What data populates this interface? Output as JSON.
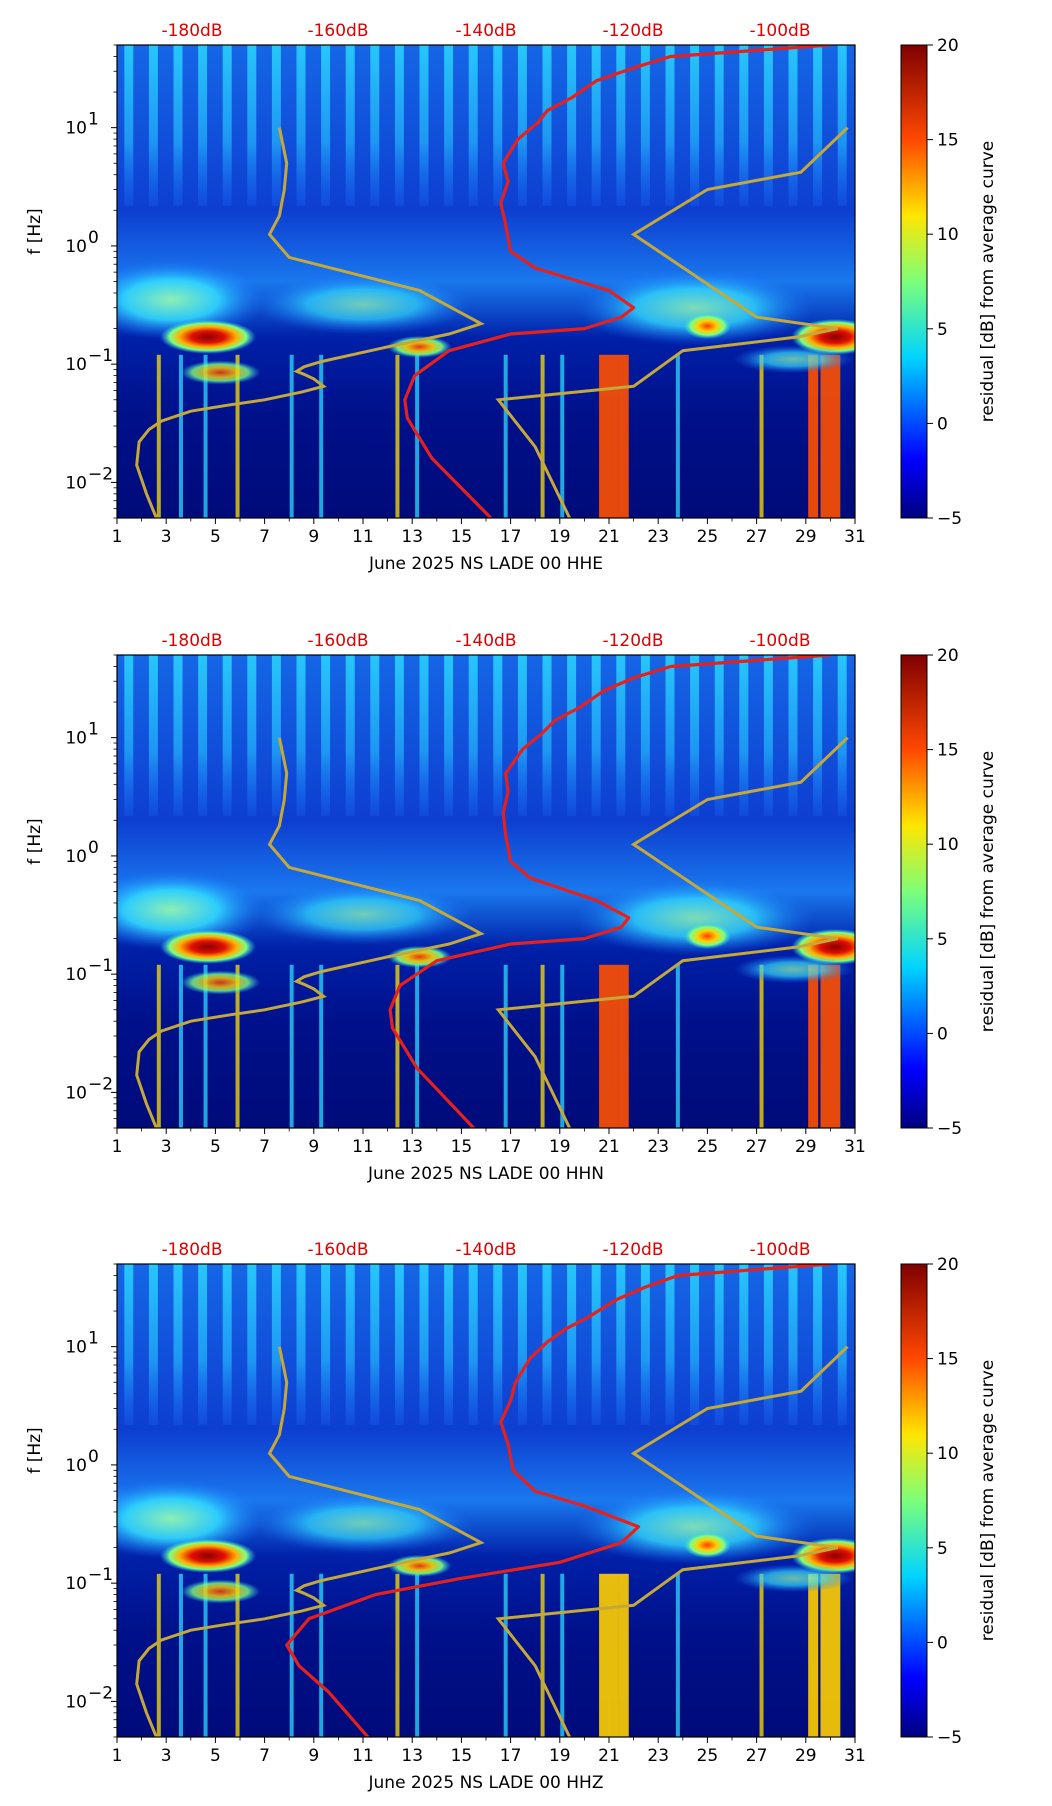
{
  "chart_data": [
    {
      "type": "heatmap",
      "xlabel": "June 2025 NS LADE 00 HHE",
      "ylabel": "f [Hz]",
      "colorbar_label": "residual [dB] from average curve",
      "x_ticks": [
        "1",
        "3",
        "5",
        "7",
        "9",
        "11",
        "13",
        "15",
        "17",
        "19",
        "21",
        "23",
        "25",
        "27",
        "29",
        "31"
      ],
      "xlim": [
        1,
        31
      ],
      "ylim_hz": [
        0.005,
        50
      ],
      "y_ticks": [
        {
          "exp": "1",
          "value": 10
        },
        {
          "exp": "0",
          "value": 1
        },
        {
          "exp": "−1",
          "value": 0.1
        },
        {
          "exp": "−2",
          "value": 0.01
        }
      ],
      "clim": [
        -5,
        20
      ],
      "colorbar_ticks": [
        "20",
        "15",
        "10",
        "5",
        "0",
        "−5"
      ],
      "top_scale_labels": [
        "-180dB",
        "-160dB",
        "-140dB",
        "-120dB",
        "-100dB"
      ],
      "red_curve": [
        [
          16.2,
          0.005
        ],
        [
          13.8,
          0.016
        ],
        [
          12.8,
          0.035
        ],
        [
          12.7,
          0.05
        ],
        [
          13.1,
          0.08
        ],
        [
          14.5,
          0.13
        ],
        [
          17,
          0.18
        ],
        [
          20,
          0.2
        ],
        [
          21.5,
          0.25
        ],
        [
          22,
          0.3
        ],
        [
          21,
          0.42
        ],
        [
          18,
          0.65
        ],
        [
          17,
          0.9
        ],
        [
          16.8,
          1.5
        ],
        [
          16.6,
          2.3
        ],
        [
          16.9,
          3.5
        ],
        [
          16.7,
          5
        ],
        [
          17.3,
          8
        ],
        [
          18.1,
          11
        ],
        [
          18.5,
          14
        ],
        [
          19.5,
          18
        ],
        [
          20.5,
          25
        ],
        [
          22,
          32
        ],
        [
          23.5,
          40
        ],
        [
          30,
          50
        ]
      ]
    },
    {
      "type": "heatmap",
      "xlabel": "June 2025 NS LADE 00 HHN",
      "ylabel": "f [Hz]",
      "colorbar_label": "residual [dB] from average curve",
      "x_ticks": [
        "1",
        "3",
        "5",
        "7",
        "9",
        "11",
        "13",
        "15",
        "17",
        "19",
        "21",
        "23",
        "25",
        "27",
        "29",
        "31"
      ],
      "xlim": [
        1,
        31
      ],
      "ylim_hz": [
        0.005,
        50
      ],
      "y_ticks": [
        {
          "exp": "1",
          "value": 10
        },
        {
          "exp": "0",
          "value": 1
        },
        {
          "exp": "−1",
          "value": 0.1
        },
        {
          "exp": "−2",
          "value": 0.01
        }
      ],
      "clim": [
        -5,
        20
      ],
      "colorbar_ticks": [
        "20",
        "15",
        "10",
        "5",
        "0",
        "−5"
      ],
      "top_scale_labels": [
        "-180dB",
        "-160dB",
        "-140dB",
        "-120dB",
        "-100dB"
      ],
      "red_curve": [
        [
          15.5,
          0.005
        ],
        [
          13.2,
          0.016
        ],
        [
          12.2,
          0.035
        ],
        [
          12.1,
          0.05
        ],
        [
          12.5,
          0.08
        ],
        [
          14,
          0.13
        ],
        [
          17,
          0.18
        ],
        [
          20,
          0.2
        ],
        [
          21.5,
          0.25
        ],
        [
          21.8,
          0.3
        ],
        [
          20.5,
          0.42
        ],
        [
          17.8,
          0.65
        ],
        [
          17,
          0.9
        ],
        [
          16.8,
          1.5
        ],
        [
          16.7,
          2.3
        ],
        [
          16.9,
          3.5
        ],
        [
          16.8,
          5
        ],
        [
          17.5,
          8
        ],
        [
          18.3,
          11
        ],
        [
          18.8,
          14
        ],
        [
          19.8,
          18
        ],
        [
          20.8,
          25
        ],
        [
          22,
          32
        ],
        [
          23.5,
          40
        ],
        [
          30,
          50
        ]
      ]
    },
    {
      "type": "heatmap",
      "xlabel": "June 2025 NS LADE 00 HHZ",
      "ylabel": "f [Hz]",
      "colorbar_label": "residual [dB] from average curve",
      "x_ticks": [
        "1",
        "3",
        "5",
        "7",
        "9",
        "11",
        "13",
        "15",
        "17",
        "19",
        "21",
        "23",
        "25",
        "27",
        "29",
        "31"
      ],
      "xlim": [
        1,
        31
      ],
      "ylim_hz": [
        0.005,
        50
      ],
      "y_ticks": [
        {
          "exp": "1",
          "value": 10
        },
        {
          "exp": "0",
          "value": 1
        },
        {
          "exp": "−1",
          "value": 0.1
        },
        {
          "exp": "−2",
          "value": 0.01
        }
      ],
      "clim": [
        -5,
        20
      ],
      "colorbar_ticks": [
        "20",
        "15",
        "10",
        "5",
        "0",
        "−5"
      ],
      "top_scale_labels": [
        "-180dB",
        "-160dB",
        "-140dB",
        "-120dB",
        "-100dB"
      ],
      "red_curve": [
        [
          11.2,
          0.005
        ],
        [
          9.6,
          0.012
        ],
        [
          8.4,
          0.02
        ],
        [
          7.9,
          0.03
        ],
        [
          8.8,
          0.05
        ],
        [
          11.5,
          0.08
        ],
        [
          15,
          0.11
        ],
        [
          19,
          0.15
        ],
        [
          21.5,
          0.22
        ],
        [
          22.2,
          0.3
        ],
        [
          20,
          0.45
        ],
        [
          18,
          0.6
        ],
        [
          17.1,
          0.9
        ],
        [
          16.9,
          1.5
        ],
        [
          16.6,
          2.3
        ],
        [
          17,
          3.5
        ],
        [
          17.2,
          5
        ],
        [
          17.8,
          8
        ],
        [
          18.5,
          11
        ],
        [
          19.2,
          14
        ],
        [
          20.2,
          18
        ],
        [
          21.3,
          25
        ],
        [
          22.5,
          32
        ],
        [
          23.8,
          40
        ],
        [
          30,
          50
        ]
      ]
    }
  ],
  "tan_reference_curve": [
    [
      2.6,
      0.005
    ],
    [
      2.2,
      0.008
    ],
    [
      1.8,
      0.014
    ],
    [
      1.9,
      0.022
    ],
    [
      2.3,
      0.028
    ],
    [
      2.8,
      0.033
    ],
    [
      4,
      0.04
    ],
    [
      5.5,
      0.045
    ],
    [
      7,
      0.05
    ],
    [
      8.5,
      0.058
    ],
    [
      9.4,
      0.065
    ],
    [
      9,
      0.075
    ],
    [
      8.6,
      0.082
    ],
    [
      8.3,
      0.087
    ],
    [
      8.6,
      0.095
    ],
    [
      9.3,
      0.105
    ],
    [
      12,
      0.14
    ],
    [
      14.5,
      0.18
    ],
    [
      15.8,
      0.22
    ],
    [
      13.3,
      0.42
    ],
    [
      8,
      0.8
    ],
    [
      7.2,
      1.25
    ],
    [
      7.6,
      1.8
    ],
    [
      7.8,
      3
    ],
    [
      7.9,
      5
    ],
    [
      7.6,
      10
    ]
  ],
  "tan_reference_curve_2": [
    [
      19.4,
      0.005
    ],
    [
      18,
      0.02
    ],
    [
      16.5,
      0.05
    ],
    [
      22,
      0.065
    ],
    [
      24,
      0.13
    ],
    [
      28.7,
      0.17
    ],
    [
      30.3,
      0.2
    ],
    [
      27,
      0.25
    ],
    [
      22,
      1.25
    ],
    [
      25,
      3
    ],
    [
      28.8,
      4.2
    ],
    [
      30.7,
      10
    ]
  ],
  "colors": {
    "red_curve": "#e8201c",
    "tan_curve": "#c4a83a",
    "db_labels": "#e00000"
  }
}
